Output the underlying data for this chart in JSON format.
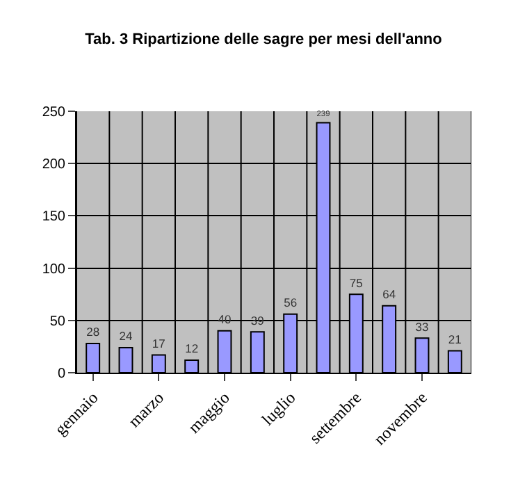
{
  "chart_data": {
    "type": "bar",
    "title": "Tab. 3 Ripartizione delle sagre per mesi dell'anno",
    "categories": [
      "gennaio",
      null,
      "marzo",
      null,
      "maggio",
      null,
      "luglio",
      null,
      "settembre",
      null,
      "novembre",
      null
    ],
    "values": [
      28,
      24,
      17,
      12,
      40,
      39,
      56,
      239,
      75,
      64,
      33,
      21
    ],
    "color": "#9999ff",
    "ylim": [
      0,
      250
    ],
    "yticks": [
      0,
      50,
      100,
      150,
      200,
      250
    ],
    "grid": true,
    "data_labels": true
  }
}
